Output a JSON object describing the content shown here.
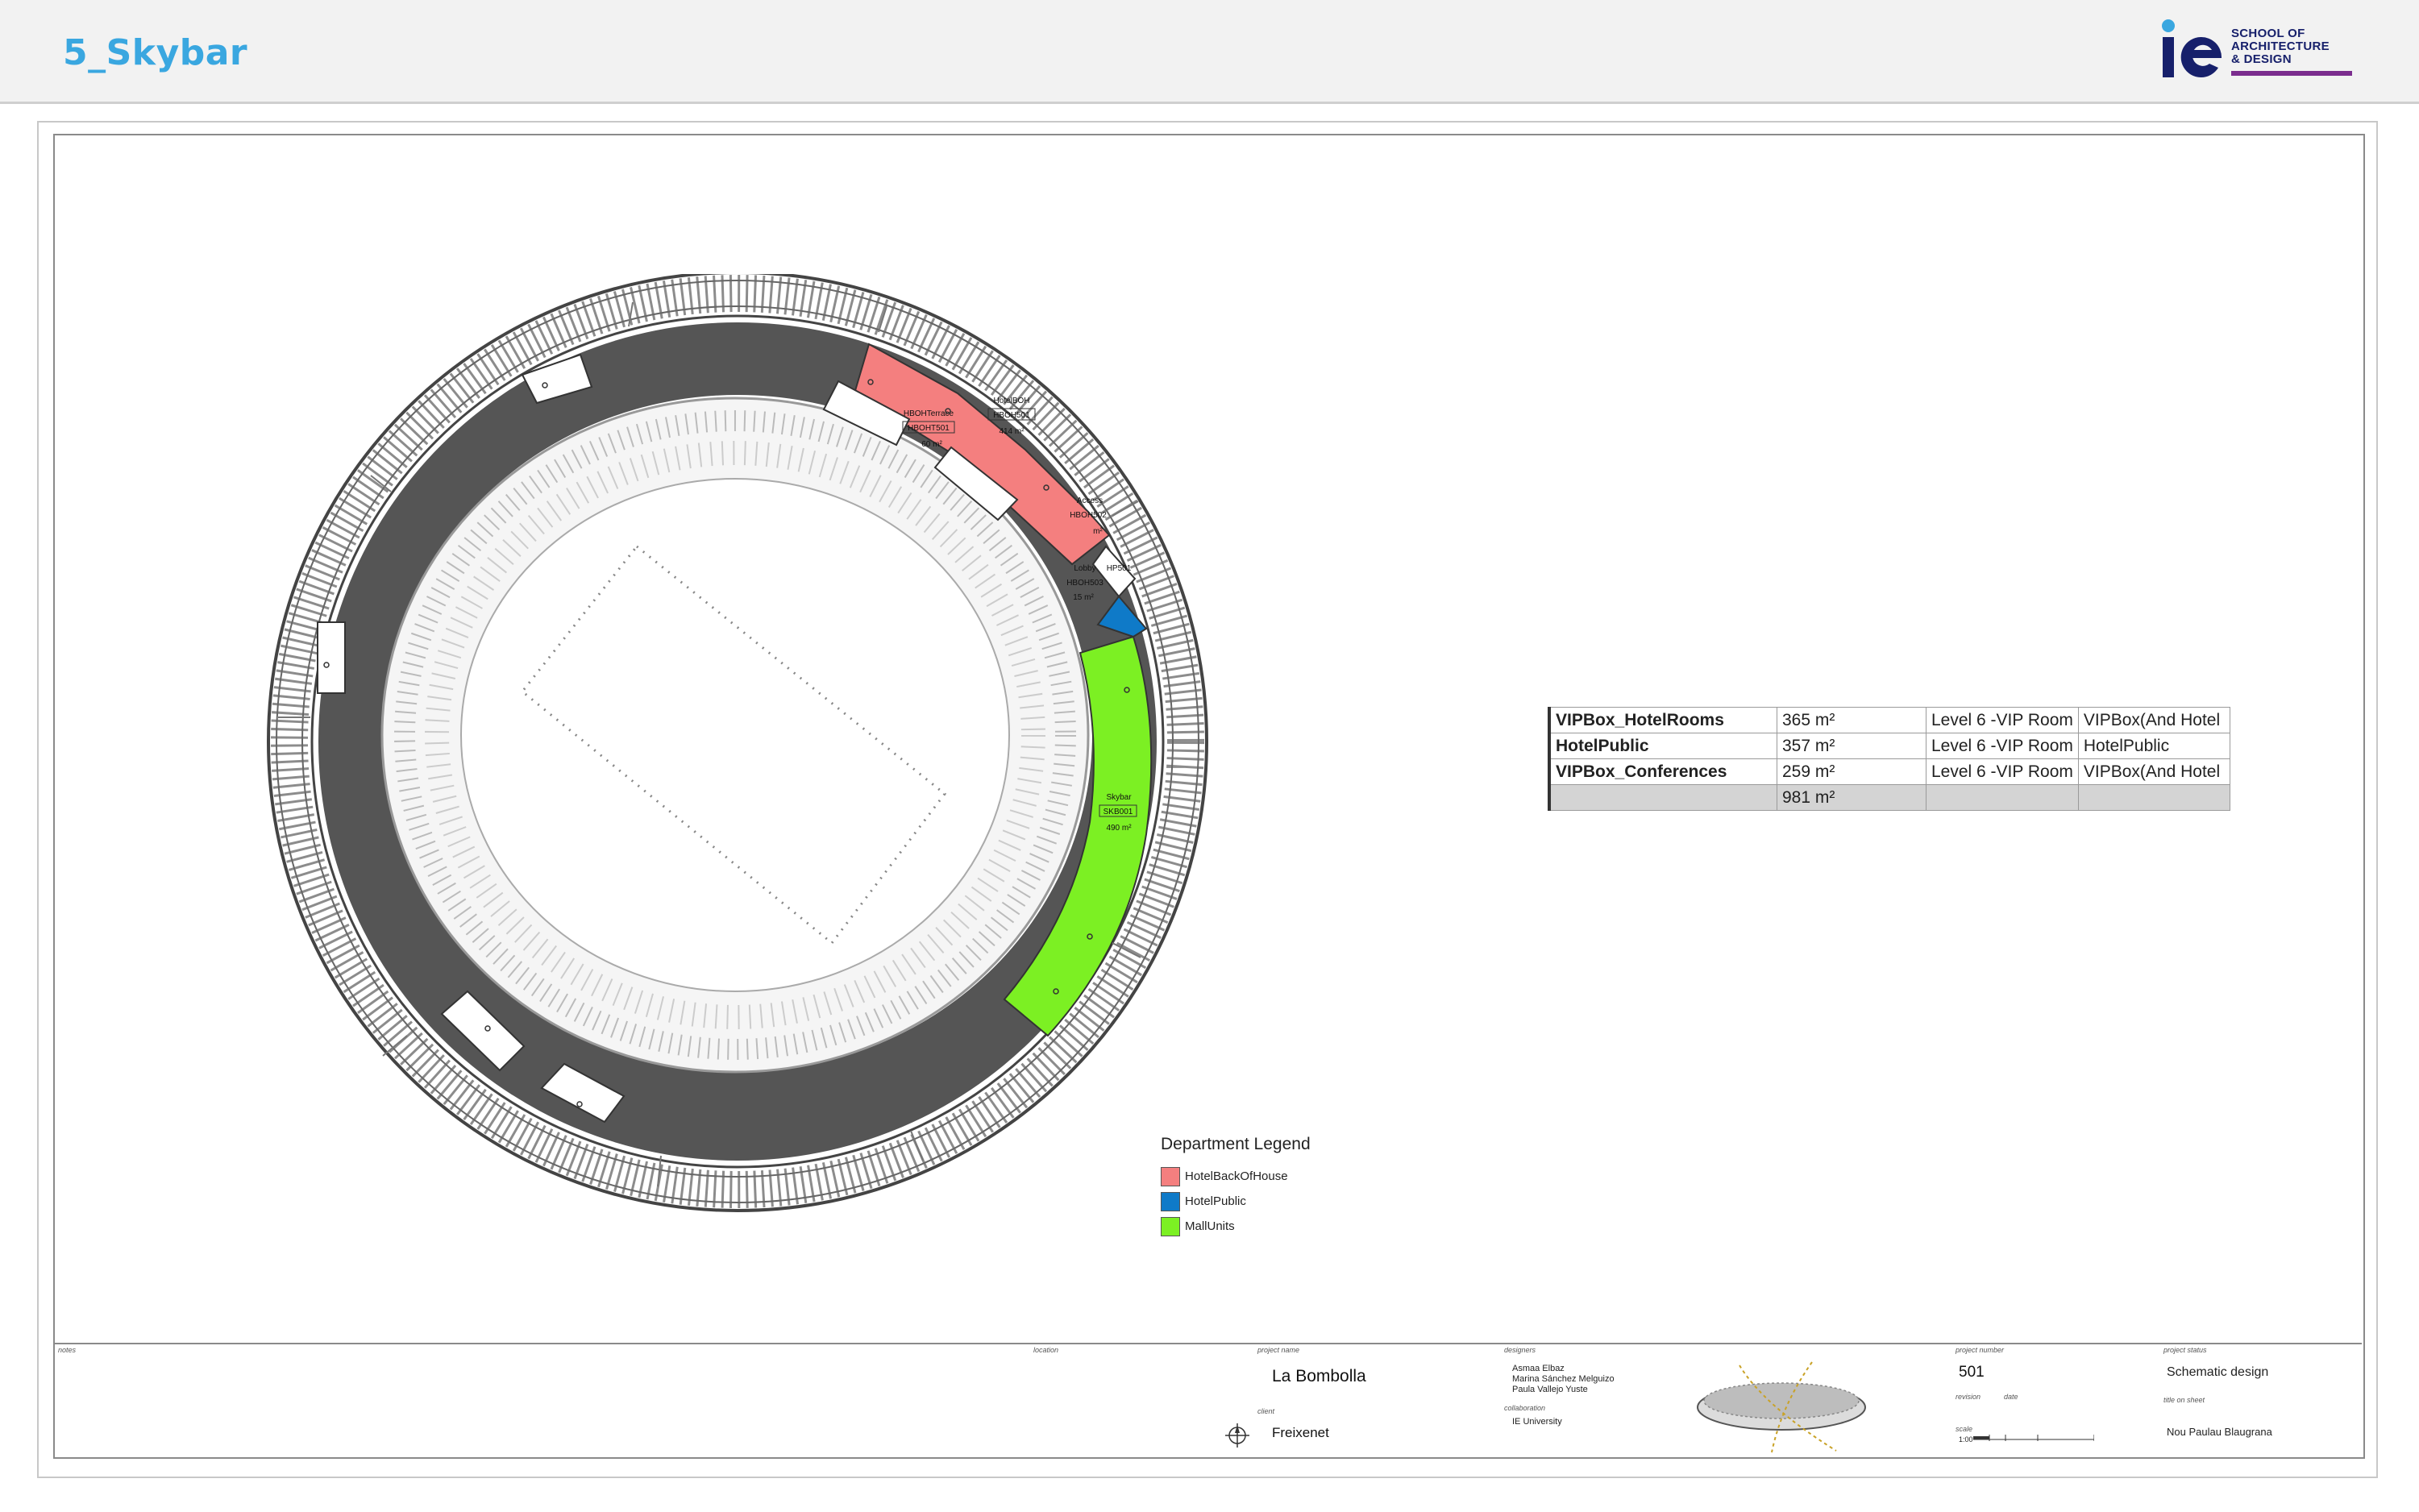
{
  "header": {
    "title": "5_Skybar",
    "logo": {
      "mark": "ie",
      "lines": [
        "SCHOOL OF",
        "ARCHITECTURE",
        "& DESIGN"
      ],
      "brand_color": "#17206b",
      "accent_color": "#7b2d8e"
    }
  },
  "plan": {
    "rooms": [
      {
        "name": "HotelBOH",
        "number": "HBOH501",
        "area": "414 m²"
      },
      {
        "name": "HBOHTerrace",
        "number": "HBOHT501",
        "area": "60 m²"
      },
      {
        "name": "Access",
        "number": "HBOH502",
        "area": "m²"
      },
      {
        "name": "Lobby",
        "number": "HBOH503",
        "area": "15 m²"
      },
      {
        "name": "HP501",
        "number": "",
        "area": ""
      },
      {
        "name": "Skybar",
        "number": "SKB001",
        "area": "490 m²"
      }
    ],
    "colors": {
      "hotel_back_of_house": "#f47f7f",
      "hotel_public": "#0f7ac8",
      "mall_units": "#7cf023",
      "concourse": "#555555"
    }
  },
  "schedule": {
    "rows": [
      {
        "name": "VIPBox_HotelRooms",
        "area": "365 m²",
        "level": "Level 6 -VIP Room",
        "type": "VIPBox(And Hotel"
      },
      {
        "name": "HotelPublic",
        "area": "357 m²",
        "level": "Level 6 -VIP Room",
        "type": "HotelPublic"
      },
      {
        "name": "VIPBox_Conferences",
        "area": "259 m²",
        "level": "Level 6 -VIP Room",
        "type": "VIPBox(And Hotel"
      }
    ],
    "total": "981 m²"
  },
  "legend": {
    "title": "Department Legend",
    "items": [
      {
        "label": "HotelBackOfHouse",
        "color": "#f47f7f"
      },
      {
        "label": "HotelPublic",
        "color": "#0f7ac8"
      },
      {
        "label": "MallUnits",
        "color": "#7cf023"
      }
    ]
  },
  "titleblock": {
    "notes_caption": "notes",
    "location_caption": "location",
    "project_name_caption": "project name",
    "project_name": "La Bombolla",
    "client_caption": "client",
    "client": "Freixenet",
    "designer_caption": "designers",
    "designers": [
      "Asmaa Elbaz",
      "Marina Sánchez Melguizo",
      "Paula Vallejo Yuste"
    ],
    "collaboration_caption": "collaboration",
    "collaboration": "IE University",
    "project_number_caption": "project number",
    "project_number": "501",
    "revision_caption": "revision",
    "date_caption": "date",
    "scale_caption": "scale",
    "scale": "1:00",
    "project_status_caption": "project status",
    "project_status": "Schematic design",
    "title_caption": "title on sheet",
    "title_on_sheet": "Nou Paulau Blaugrana"
  }
}
